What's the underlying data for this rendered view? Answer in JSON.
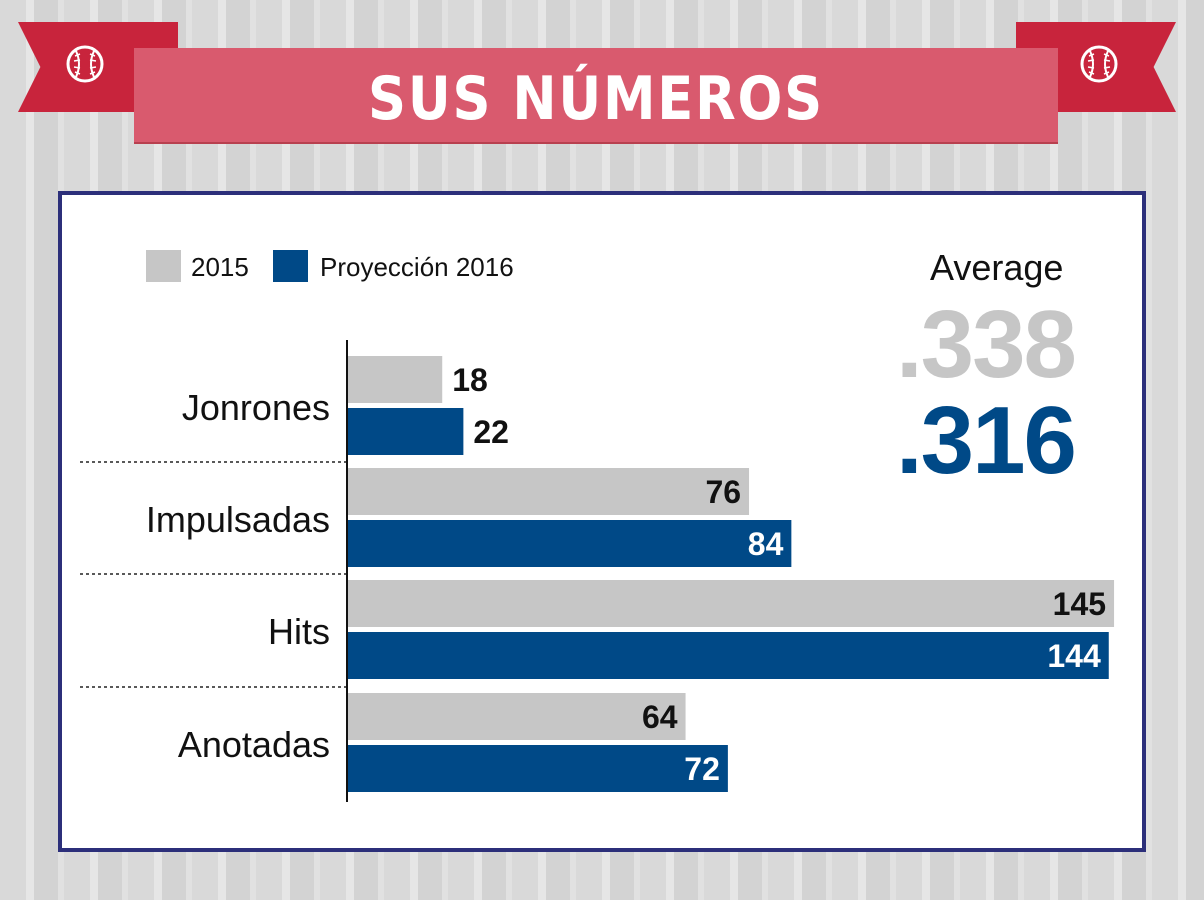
{
  "header": {
    "title": "SUS NÚMEROS"
  },
  "icons": [
    "baseball-icon",
    "baseball-icon"
  ],
  "colors": {
    "ribbon": "#c8243c",
    "banner": "#d95a6e",
    "series_2015": "#c6c6c6",
    "series_2016": "#004987",
    "frame": "#2c2f7a"
  },
  "average": {
    "label": "Average",
    "value_2015": ".338",
    "value_2016": ".316"
  },
  "chart_data": {
    "type": "bar",
    "orientation": "horizontal",
    "categories": [
      "Jonrones",
      "Impulsadas",
      "Hits",
      "Anotadas"
    ],
    "series": [
      {
        "name": "2015",
        "values": [
          18,
          76,
          145,
          64
        ],
        "color": "#c6c6c6"
      },
      {
        "name": "Proyección 2016",
        "values": [
          22,
          84,
          144,
          72
        ],
        "color": "#004987"
      }
    ],
    "legend": "top-left",
    "grid": false
  }
}
